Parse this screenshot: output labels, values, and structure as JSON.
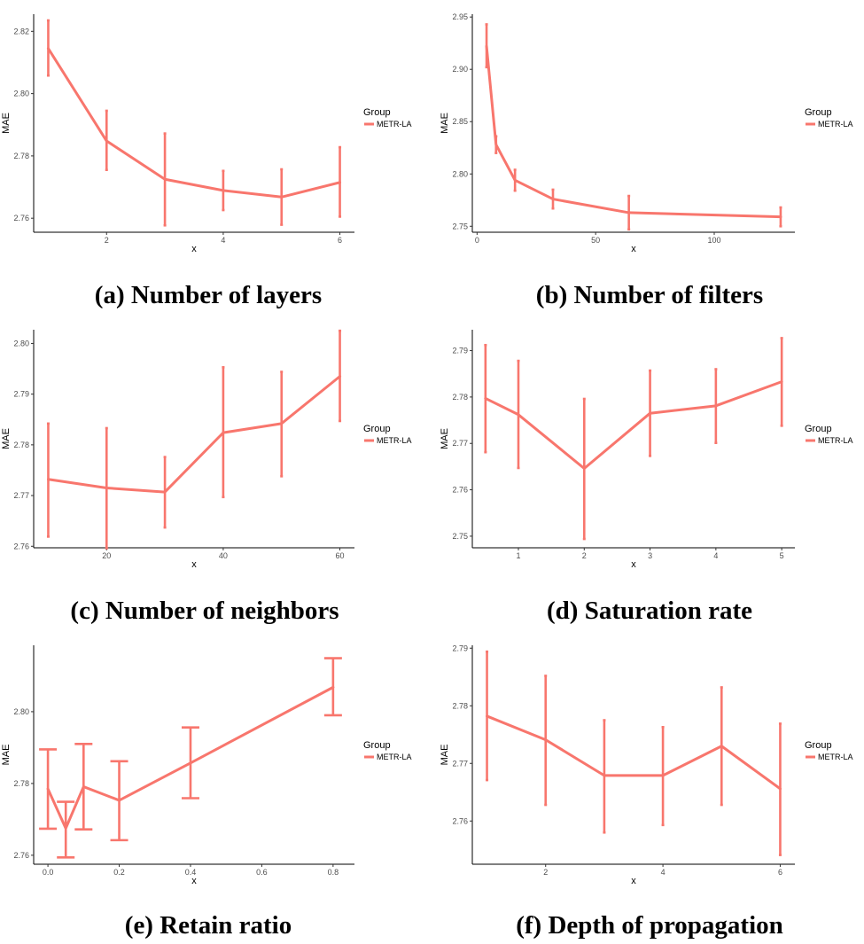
{
  "figure": {
    "series_color": "#F8766D"
  },
  "chart_data": [
    {
      "type": "line",
      "caption": "(a) Number of layers",
      "xlabel": "x",
      "ylabel": "MAE",
      "legend_title": "Group",
      "legend_placement": "right",
      "grid": false,
      "xlim": [
        0.75,
        6.25
      ],
      "ylim": [
        2.7555,
        2.8255
      ],
      "xticks": [
        2,
        4,
        6
      ],
      "yticks": [
        2.76,
        2.78,
        2.8,
        2.82
      ],
      "xtick_labels": [
        "2",
        "4",
        "6"
      ],
      "ytick_labels": [
        "2.76",
        "2.78",
        "2.80",
        "2.82"
      ],
      "series": [
        {
          "name": "METR-LA",
          "x": [
            1,
            2,
            3,
            4,
            5,
            6
          ],
          "values": [
            2.8145,
            2.7848,
            2.7725,
            2.7689,
            2.7668,
            2.7715
          ],
          "err_low": [
            2.8058,
            2.7755,
            2.7577,
            2.7626,
            2.7579,
            2.7605
          ],
          "err_high": [
            2.8235,
            2.7945,
            2.7872,
            2.7752,
            2.7757,
            2.7828
          ]
        }
      ]
    },
    {
      "type": "line",
      "caption": "(b) Number of filters",
      "xlabel": "x",
      "ylabel": "MAE",
      "legend_title": "Group",
      "legend_placement": "right",
      "grid": false,
      "xlim": [
        -2,
        134
      ],
      "ylim": [
        2.7443,
        2.9527
      ],
      "xticks": [
        0,
        50,
        100
      ],
      "yticks": [
        2.75,
        2.8,
        2.85,
        2.9,
        2.95
      ],
      "xtick_labels": [
        "0",
        "50",
        "100"
      ],
      "ytick_labels": [
        "2.75",
        "2.80",
        "2.85",
        "2.90",
        "2.95"
      ],
      "series": [
        {
          "name": "METR-LA",
          "x": [
            4,
            8,
            16,
            32,
            64,
            128
          ],
          "values": [
            2.922,
            2.828,
            2.794,
            2.776,
            2.763,
            2.759
          ],
          "err_low": [
            2.902,
            2.82,
            2.784,
            2.767,
            2.747,
            2.75
          ],
          "err_high": [
            2.943,
            2.836,
            2.804,
            2.785,
            2.779,
            2.768
          ]
        }
      ]
    },
    {
      "type": "line",
      "caption": "(c) Number of neighbors",
      "xlabel": "x",
      "ylabel": "MAE",
      "legend_title": "Group",
      "legend_placement": "right",
      "grid": false,
      "xlim": [
        7.5,
        62.5
      ],
      "ylim": [
        2.7597,
        2.8027
      ],
      "xticks": [
        20,
        40,
        60
      ],
      "yticks": [
        2.76,
        2.77,
        2.78,
        2.79,
        2.8
      ],
      "xtick_labels": [
        "20",
        "40",
        "60"
      ],
      "ytick_labels": [
        "2.76",
        "2.77",
        "2.78",
        "2.79",
        "2.80"
      ],
      "series": [
        {
          "name": "METR-LA",
          "x": [
            10,
            20,
            30,
            40,
            50,
            60
          ],
          "values": [
            2.7732,
            2.7715,
            2.7707,
            2.7824,
            2.7842,
            2.7935
          ],
          "err_low": [
            2.7619,
            2.7596,
            2.7637,
            2.7697,
            2.7738,
            2.7847
          ],
          "err_high": [
            2.7842,
            2.7833,
            2.7776,
            2.7953,
            2.7944,
            2.8025
          ]
        }
      ]
    },
    {
      "type": "line",
      "caption": "(d) Saturation rate",
      "xlabel": "x",
      "ylabel": "MAE",
      "legend_title": "Group",
      "legend_placement": "right",
      "grid": false,
      "xlim": [
        0.3,
        5.2
      ],
      "ylim": [
        2.7475,
        2.7945
      ],
      "xticks": [
        1,
        2,
        3,
        4,
        5
      ],
      "yticks": [
        2.75,
        2.76,
        2.77,
        2.78,
        2.79
      ],
      "xtick_labels": [
        "1",
        "2",
        "3",
        "4",
        "5"
      ],
      "ytick_labels": [
        "2.75",
        "2.76",
        "2.77",
        "2.78",
        "2.79"
      ],
      "series": [
        {
          "name": "METR-LA",
          "x": [
            0.5,
            1,
            2,
            3,
            4,
            5
          ],
          "values": [
            2.7797,
            2.7762,
            2.7646,
            2.7765,
            2.7781,
            2.7833
          ],
          "err_low": [
            2.7681,
            2.7647,
            2.7494,
            2.7673,
            2.7701,
            2.7738
          ],
          "err_high": [
            2.7912,
            2.7878,
            2.7796,
            2.7857,
            2.786,
            2.7927
          ]
        }
      ]
    },
    {
      "type": "line",
      "caption": "(e) Retain ratio",
      "xlabel": "x",
      "ylabel": "MAE",
      "legend_title": "Group",
      "legend_placement": "right",
      "grid": false,
      "xlim": [
        -0.04,
        0.86
      ],
      "ylim": [
        2.7575,
        2.8185
      ],
      "xticks": [
        0,
        0.2,
        0.4,
        0.6,
        0.8
      ],
      "yticks": [
        2.76,
        2.78,
        2.8
      ],
      "xtick_labels": [
        "0.0",
        "0.2",
        "0.4",
        "0.6",
        "0.8"
      ],
      "ytick_labels": [
        "2.76",
        "2.78",
        "2.80"
      ],
      "series": [
        {
          "name": "METR-LA",
          "x": [
            0,
            0.05,
            0.1,
            0.2,
            0.4,
            0.8
          ],
          "values": [
            2.7785,
            2.7675,
            2.7791,
            2.7753,
            2.7857,
            2.8068
          ],
          "err_low": [
            2.7674,
            2.7594,
            2.7672,
            2.7642,
            2.7759,
            2.799
          ],
          "err_high": [
            2.7895,
            2.7749,
            2.791,
            2.7862,
            2.7956,
            2.8149
          ]
        }
      ]
    },
    {
      "type": "line",
      "caption": "(f) Depth of propagation",
      "xlabel": "x",
      "ylabel": "MAE",
      "legend_title": "Group",
      "legend_placement": "right",
      "grid": false,
      "xlim": [
        0.75,
        6.25
      ],
      "ylim": [
        2.7525,
        2.7905
      ],
      "xticks": [
        2,
        4,
        6
      ],
      "yticks": [
        2.76,
        2.77,
        2.78,
        2.79
      ],
      "xtick_labels": [
        "2",
        "4",
        "6"
      ],
      "ytick_labels": [
        "2.76",
        "2.77",
        "2.78",
        "2.79"
      ],
      "series": [
        {
          "name": "METR-LA",
          "x": [
            1,
            2,
            3,
            4,
            5,
            6
          ],
          "values": [
            2.7782,
            2.7741,
            2.7679,
            2.7679,
            2.773,
            2.7656
          ],
          "err_low": [
            2.7671,
            2.7628,
            2.758,
            2.7593,
            2.7628,
            2.7541
          ],
          "err_high": [
            2.7894,
            2.7852,
            2.7775,
            2.7763,
            2.7832,
            2.7769
          ]
        }
      ]
    }
  ]
}
